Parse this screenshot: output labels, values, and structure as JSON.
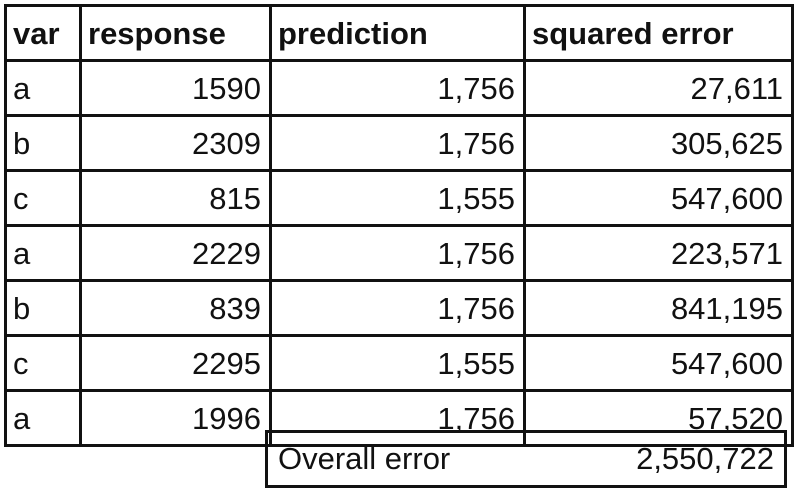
{
  "table": {
    "headers": [
      "var",
      "response",
      "prediction",
      "squared error"
    ],
    "rows": [
      {
        "var": "a",
        "response": "1590",
        "prediction": "1,756",
        "squared_error": "27,611"
      },
      {
        "var": "b",
        "response": "2309",
        "prediction": "1,756",
        "squared_error": "305,625"
      },
      {
        "var": "c",
        "response": "815",
        "prediction": "1,555",
        "squared_error": "547,600"
      },
      {
        "var": "a",
        "response": "2229",
        "prediction": "1,756",
        "squared_error": "223,571"
      },
      {
        "var": "b",
        "response": "839",
        "prediction": "1,756",
        "squared_error": "841,195"
      },
      {
        "var": "c",
        "response": "2295",
        "prediction": "1,555",
        "squared_error": "547,600"
      },
      {
        "var": "a",
        "response": "1996",
        "prediction": "1,756",
        "squared_error": "57,520"
      }
    ]
  },
  "summary": {
    "label": "Overall error",
    "value": "2,550,722"
  }
}
